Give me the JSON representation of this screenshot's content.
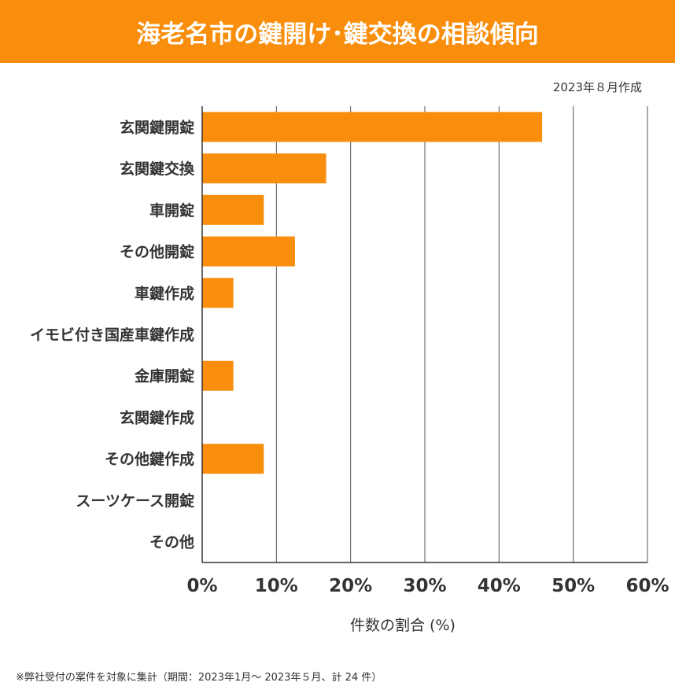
{
  "title": "海老名市の鍵開け･鍵交換の相談傾向",
  "date_note": "2023年８月作成",
  "footnote": "※弊社受付の案件を対象に集計（期間：2023年1月～ 2023年５月、計 24 件）",
  "colors": {
    "bar": "#f98e0c",
    "header": "#f98e0c",
    "grid": "#555555"
  },
  "chart_data": {
    "type": "bar",
    "orientation": "horizontal",
    "title": "海老名市の鍵開け･鍵交換の相談傾向",
    "xlabel": "件数の割合 (%)",
    "ylabel": "",
    "xlim": [
      0,
      60
    ],
    "grid": true,
    "categories": [
      "玄関鍵開錠",
      "玄関鍵交換",
      "車開錠",
      "その他開錠",
      "車鍵作成",
      "イモビ付き国産車鍵作成",
      "金庫開錠",
      "玄関鍵作成",
      "その他鍵作成",
      "スーツケース開錠",
      "その他"
    ],
    "values": [
      45.8,
      16.7,
      8.3,
      12.5,
      4.2,
      0,
      4.2,
      0,
      8.3,
      0,
      0
    ],
    "xticks": [
      "0%",
      "10%",
      "20%",
      "30%",
      "40%",
      "50%",
      "60%"
    ]
  }
}
